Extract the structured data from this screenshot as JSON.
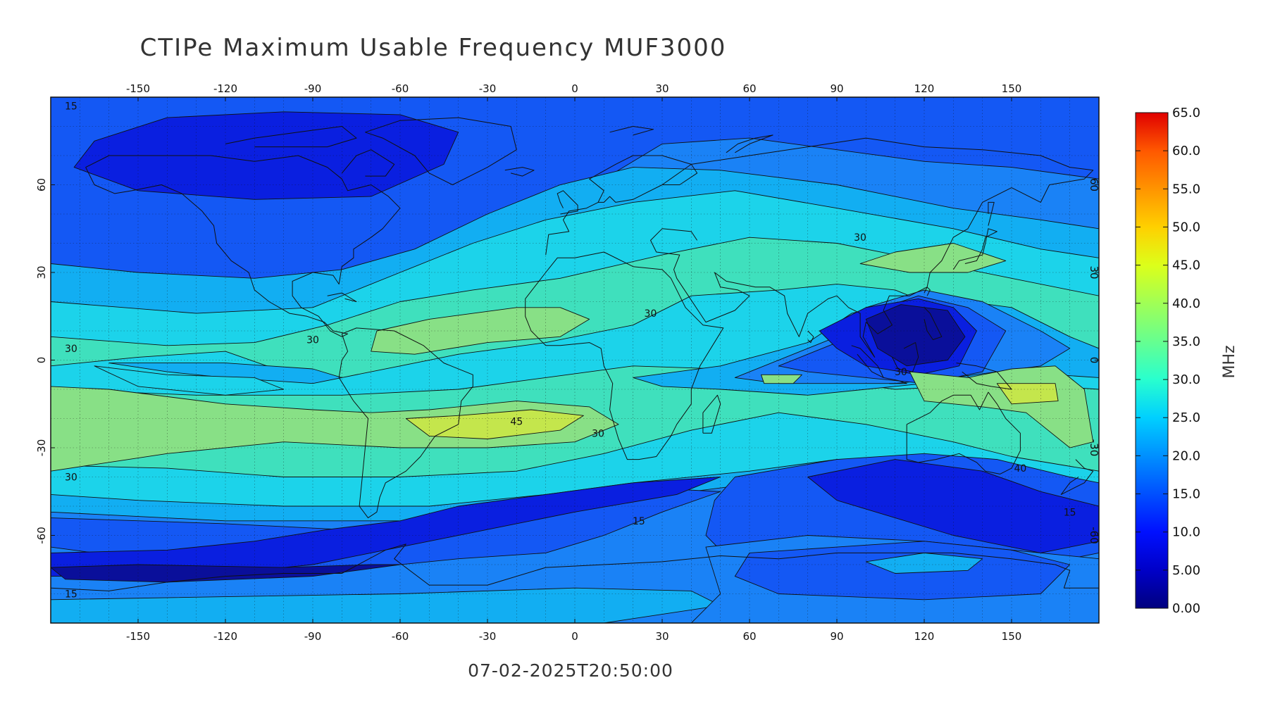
{
  "title": "CTIPe Maximum Usable Frequency MUF3000",
  "timestamp": "07-02-2025T20:50:00",
  "colorbar": {
    "unit": "MHz",
    "min": 0,
    "max": 65,
    "tick_labels": [
      "0.00",
      "5.00",
      "10.0",
      "15.0",
      "20.0",
      "25.0",
      "30.0",
      "35.0",
      "40.0",
      "45.0",
      "50.0",
      "55.0",
      "60.0",
      "65.0"
    ],
    "tick_values": [
      0,
      5,
      10,
      15,
      20,
      25,
      30,
      35,
      40,
      45,
      50,
      55,
      60,
      65
    ],
    "colors": [
      "#00007f",
      "#0000c8",
      "#0010ff",
      "#0050ff",
      "#0090ff",
      "#00d0ff",
      "#29ffce",
      "#66ff90",
      "#a0ff56",
      "#dcff1a",
      "#ffd000",
      "#ff9400",
      "#ff5800",
      "#e00000"
    ]
  },
  "map": {
    "lon_labels": [
      "-150",
      "-120",
      "-90",
      "-60",
      "-30",
      "0",
      "30",
      "60",
      "90",
      "120",
      "150"
    ],
    "lon_values": [
      -150,
      -120,
      -90,
      -60,
      -30,
      0,
      30,
      60,
      90,
      120,
      150
    ],
    "lat_labels": [
      "60",
      "30",
      "0",
      "-30",
      "-60"
    ],
    "lat_values": [
      60,
      30,
      0,
      -30,
      -60
    ],
    "lon_range": [
      -180,
      180
    ],
    "lat_range": [
      -90,
      90
    ],
    "grid": true,
    "contour_labels": [
      {
        "text": "15",
        "lon": -173,
        "lat": 87
      },
      {
        "text": "30",
        "lon": 98,
        "lat": 42
      },
      {
        "text": "30",
        "lon": 26,
        "lat": 16
      },
      {
        "text": "30",
        "lon": -90,
        "lat": 7
      },
      {
        "text": "30",
        "lon": -173,
        "lat": 4
      },
      {
        "text": "45",
        "lon": -20,
        "lat": -21
      },
      {
        "text": "30",
        "lon": 8,
        "lat": -25
      },
      {
        "text": "30",
        "lon": -173,
        "lat": -40
      },
      {
        "text": "15",
        "lon": 22,
        "lat": -55
      },
      {
        "text": "15",
        "lon": -173,
        "lat": -80
      },
      {
        "text": "30",
        "lon": 112,
        "lat": -4
      },
      {
        "text": "40",
        "lon": 153,
        "lat": -37
      },
      {
        "text": "15",
        "lon": 170,
        "lat": -52
      }
    ]
  },
  "color_bands": {
    "band5": "#0a1fe0",
    "band10": "#1458f4",
    "band15": "#1a82f6",
    "band20": "#12aef2",
    "band25": "#1cd3ea",
    "band30": "#3fe0bd",
    "band35": "#88e086",
    "band40": "#c4e64c",
    "deep": "#0a0f9a",
    "land": "#111111"
  }
}
